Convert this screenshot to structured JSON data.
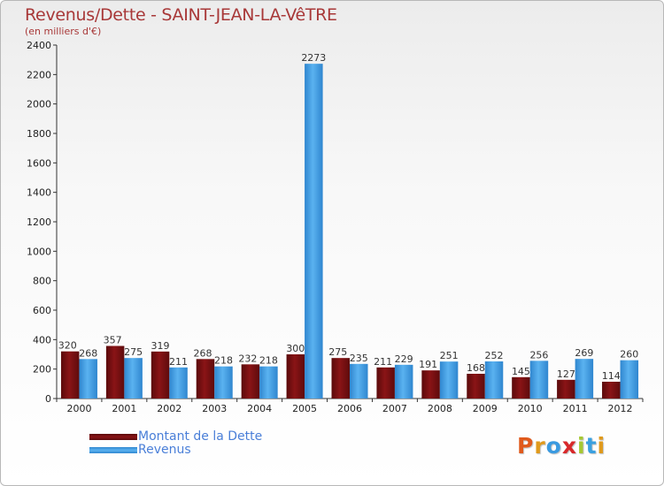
{
  "title": "Revenus/Dette - SAINT-JEAN-LA-VêTRE",
  "subtitle": "(en milliers d'€)",
  "legend": [
    {
      "label": "Montant de la Dette",
      "color": "#7a0f10"
    },
    {
      "label": "Revenus",
      "color": "#3f9ee6"
    }
  ],
  "logo": {
    "text": "Proxiti",
    "letters": [
      "P",
      "r",
      "o",
      "x",
      "i",
      "t",
      "i"
    ],
    "colors": [
      "#e05a1c",
      "#e09a1c",
      "#3a9ae0",
      "#d8282a",
      "#a6c832",
      "#3aa0e0",
      "#e09a1c"
    ]
  },
  "chart_data": {
    "type": "bar",
    "categories": [
      "2000",
      "2001",
      "2002",
      "2003",
      "2004",
      "2005",
      "2006",
      "2007",
      "2008",
      "2009",
      "2010",
      "2011",
      "2012"
    ],
    "series": [
      {
        "name": "Montant de la Dette",
        "color": "#7a0f10",
        "values": [
          320,
          357,
          319,
          268,
          232,
          300,
          275,
          211,
          191,
          168,
          145,
          127,
          114
        ]
      },
      {
        "name": "Revenus",
        "color": "#3f9ee6",
        "values": [
          268,
          275,
          211,
          218,
          218,
          2273,
          235,
          229,
          251,
          252,
          256,
          269,
          260
        ]
      }
    ],
    "ylim": [
      0,
      2400
    ],
    "yticks": [
      0,
      200,
      400,
      600,
      800,
      1000,
      1200,
      1400,
      1600,
      1800,
      2000,
      2200,
      2400
    ],
    "grid": false
  }
}
